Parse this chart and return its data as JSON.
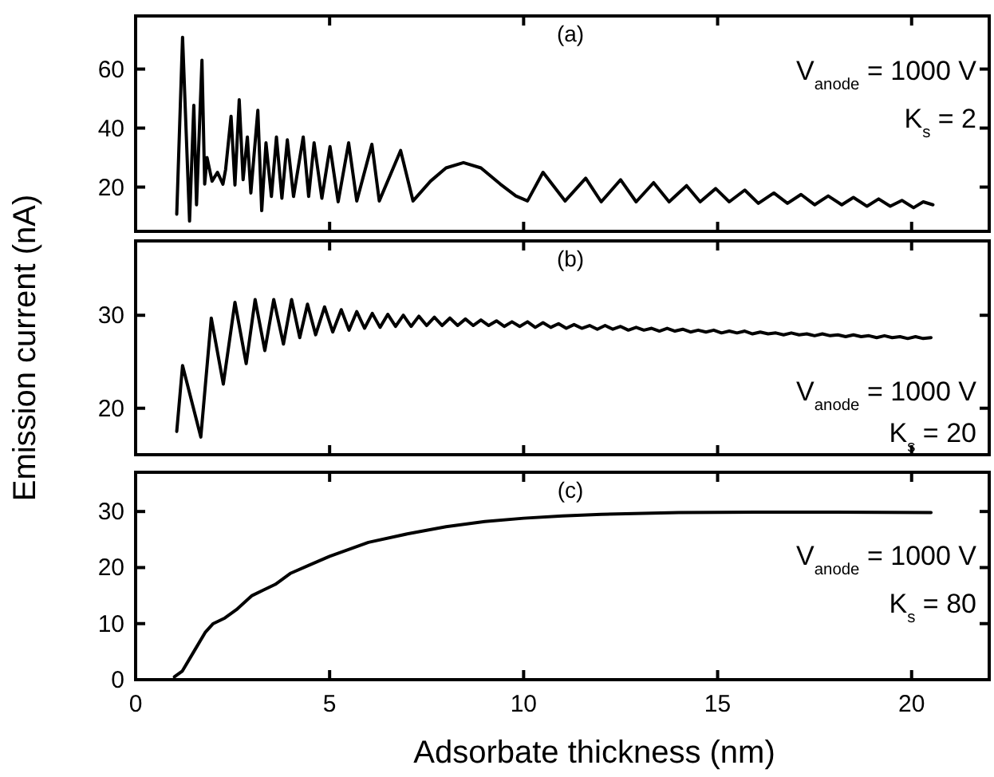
{
  "chart_data": [
    {
      "type": "line",
      "annotations": [
        "(a)",
        "V$_{anode}$ = 1000 V",
        "K$_{s}$ = 2"
      ],
      "xlim": [
        0,
        22
      ],
      "xticks": [
        0,
        5,
        10,
        15,
        20
      ],
      "ylim": [
        5,
        78
      ],
      "yticks": [
        20,
        40,
        60
      ],
      "tick_labels": "y",
      "grid": false,
      "marker": "none",
      "line_style": "solid",
      "series": [
        {
          "color": "#000000",
          "x": [
            1.06,
            1.21,
            1.39,
            1.5,
            1.57,
            1.71,
            1.78,
            1.84,
            1.97,
            2.11,
            2.25,
            2.32,
            2.46,
            2.56,
            2.67,
            2.77,
            2.88,
            2.97,
            3.15,
            3.25,
            3.36,
            3.5,
            3.63,
            3.77,
            3.91,
            4.07,
            4.32,
            4.46,
            4.6,
            4.8,
            5.01,
            5.22,
            5.49,
            5.7,
            6.09,
            6.28,
            6.83,
            7.15,
            7.6,
            8.0,
            8.45,
            8.9,
            9.4,
            9.8,
            10.1,
            10.5,
            11.07,
            11.6,
            12.0,
            12.5,
            12.9,
            13.35,
            13.75,
            14.2,
            14.55,
            14.95,
            15.3,
            15.7,
            16.05,
            16.45,
            16.8,
            17.15,
            17.5,
            17.85,
            18.2,
            18.5,
            18.85,
            19.15,
            19.45,
            19.75,
            20.05,
            20.3,
            20.55
          ],
          "values": [
            10.8,
            70.8,
            8.5,
            47.7,
            14,
            63,
            21,
            30,
            22,
            25,
            21,
            26,
            44,
            20.7,
            49.6,
            22.5,
            37,
            18,
            46,
            12,
            35,
            16.8,
            37,
            16.2,
            36,
            16.8,
            37,
            16.8,
            35,
            16.2,
            33.7,
            15,
            35,
            15.3,
            34.5,
            15.3,
            32.4,
            15.3,
            22,
            26.5,
            28.3,
            26.5,
            21,
            17,
            15.3,
            25,
            15.3,
            23,
            15,
            22.5,
            15,
            21.5,
            15,
            20.5,
            15,
            19.5,
            15,
            19,
            14.5,
            18,
            14.5,
            17.5,
            14,
            17,
            14,
            16.5,
            13.5,
            16,
            13.5,
            15.5,
            13,
            15,
            14
          ]
        }
      ]
    },
    {
      "type": "line",
      "ylabel": "Emission current (nA)",
      "annotations": [
        "(b)",
        "V$_{anode}$ = 1000 V",
        "K$_{s}$ = 20"
      ],
      "xlim": [
        0,
        22
      ],
      "xticks": [
        0,
        5,
        10,
        15,
        20
      ],
      "ylim": [
        15,
        38
      ],
      "yticks": [
        20,
        30
      ],
      "tick_labels": "y",
      "grid": false,
      "marker": "none",
      "line_style": "solid",
      "series": [
        {
          "color": "#000000",
          "x": [
            1.06,
            1.21,
            1.68,
            1.95,
            2.26,
            2.56,
            2.85,
            3.08,
            3.33,
            3.56,
            3.81,
            4.02,
            4.23,
            4.43,
            4.64,
            4.87,
            5.08,
            5.3,
            5.5,
            5.7,
            5.9,
            6.1,
            6.3,
            6.5,
            6.7,
            6.9,
            7.1,
            7.3,
            7.5,
            7.7,
            7.9,
            8.1,
            8.3,
            8.5,
            8.7,
            8.9,
            9.1,
            9.3,
            9.5,
            9.7,
            9.9,
            10.1,
            10.3,
            10.5,
            10.7,
            10.9,
            11.1,
            11.3,
            11.5,
            11.7,
            11.9,
            12.1,
            12.3,
            12.5,
            12.7,
            12.9,
            13.1,
            13.3,
            13.5,
            13.7,
            13.9,
            14.1,
            14.3,
            14.5,
            14.7,
            14.9,
            15.1,
            15.3,
            15.5,
            15.7,
            15.9,
            16.1,
            16.3,
            16.5,
            16.7,
            16.9,
            17.1,
            17.3,
            17.5,
            17.7,
            17.9,
            18.1,
            18.3,
            18.5,
            18.7,
            18.9,
            19.1,
            19.3,
            19.5,
            19.7,
            19.9,
            20.1,
            20.3,
            20.5
          ],
          "values": [
            17.5,
            24.6,
            16.9,
            29.7,
            22.6,
            31.4,
            24.8,
            31.7,
            26.2,
            31.7,
            26.9,
            31.7,
            27.6,
            31.2,
            27.9,
            30.9,
            28.2,
            30.6,
            28.4,
            30.4,
            28.6,
            30.2,
            28.7,
            30.1,
            28.8,
            30,
            28.8,
            29.9,
            28.9,
            29.8,
            28.9,
            29.7,
            28.9,
            29.6,
            28.9,
            29.5,
            28.9,
            29.4,
            28.8,
            29.3,
            28.8,
            29.3,
            28.7,
            29.2,
            28.7,
            29.1,
            28.6,
            29,
            28.6,
            28.9,
            28.5,
            28.9,
            28.5,
            28.8,
            28.4,
            28.7,
            28.4,
            28.6,
            28.3,
            28.6,
            28.3,
            28.5,
            28.2,
            28.4,
            28.2,
            28.4,
            28.1,
            28.3,
            28.1,
            28.3,
            28.0,
            28.2,
            28.0,
            28.1,
            27.9,
            28.1,
            27.9,
            28.0,
            27.8,
            28.0,
            27.8,
            27.9,
            27.7,
            27.9,
            27.7,
            27.8,
            27.6,
            27.8,
            27.6,
            27.7,
            27.5,
            27.7,
            27.5,
            27.6
          ]
        }
      ]
    },
    {
      "type": "line",
      "xlabel": "Adsorbate thickness (nm)",
      "annotations": [
        "(c)",
        "V$_{anode}$ = 1000 V",
        "K$_{s}$ = 80"
      ],
      "xlim": [
        0,
        22
      ],
      "xticks": [
        0,
        5,
        10,
        15,
        20
      ],
      "ylim": [
        0,
        37
      ],
      "yticks": [
        0,
        10,
        20,
        30
      ],
      "grid": false,
      "marker": "none",
      "line_style": "solid",
      "series": [
        {
          "color": "#000000",
          "x": [
            1.0,
            1.2,
            1.5,
            1.8,
            2.0,
            2.3,
            2.6,
            3.0,
            3.3,
            3.6,
            4.0,
            4.5,
            5,
            6,
            7,
            8,
            9,
            10,
            11,
            12,
            14,
            16,
            18,
            20.5
          ],
          "values": [
            0.5,
            1.5,
            5,
            8.5,
            10,
            11,
            12.5,
            15,
            16,
            17,
            19,
            20.5,
            22,
            24.5,
            26,
            27.3,
            28.2,
            28.8,
            29.2,
            29.5,
            29.8,
            29.9,
            29.9,
            29.8
          ]
        }
      ]
    }
  ]
}
